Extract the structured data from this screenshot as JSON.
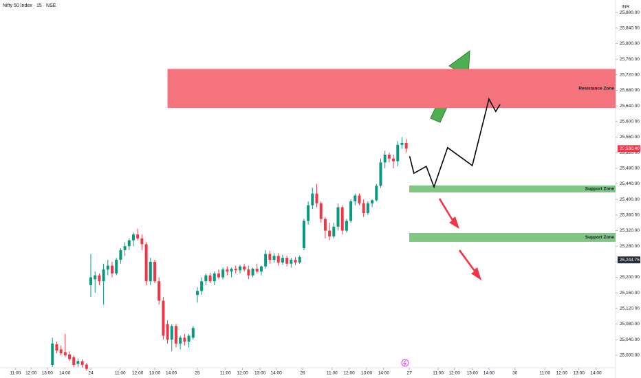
{
  "chart_data": {
    "type": "candlestick",
    "title": "Nifty 50 Index · 15 · NSE",
    "currency": "INR",
    "up_color": "#089981",
    "down_color": "#f23645",
    "x": [
      -9,
      -8,
      -7,
      -6,
      -5,
      -4,
      -3,
      -2,
      -1,
      0,
      1,
      2,
      3,
      4,
      5,
      6,
      7,
      8,
      9,
      10,
      11,
      12,
      13,
      14,
      15,
      16,
      17,
      18,
      19,
      20,
      21,
      22,
      23,
      24,
      25,
      26,
      27,
      28,
      29,
      30,
      31,
      32,
      33,
      34,
      35,
      36,
      37,
      38,
      39,
      40,
      41,
      42,
      43,
      44,
      45,
      46,
      47,
      48,
      49,
      50,
      51,
      52,
      53,
      54,
      55,
      56,
      57,
      58,
      59,
      60,
      61,
      62,
      63,
      64,
      65,
      66,
      67,
      68,
      69,
      70,
      71,
      72,
      73,
      74
    ],
    "open": [
      24975,
      25028,
      25015,
      25008,
      25002,
      24995,
      24978,
      24985,
      24976,
      25180,
      25195,
      25205,
      25190,
      25220,
      25230,
      25210,
      25245,
      25270,
      25280,
      25295,
      25310,
      25300,
      25285,
      25190,
      25240,
      25190,
      25140,
      25080,
      25040,
      25075,
      25030,
      25045,
      25035,
      25045,
      25155,
      25165,
      25190,
      25205,
      25190,
      25210,
      25200,
      25220,
      25215,
      25222,
      25218,
      25228,
      25220,
      25205,
      25222,
      25215,
      25228,
      25260,
      25245,
      25255,
      25238,
      25250,
      25235,
      25245,
      25238,
      25275,
      25345,
      25385,
      25415,
      25390,
      25350,
      25320,
      25305,
      25330,
      25380,
      25320,
      25345,
      25395,
      25410,
      25390,
      25365,
      25390,
      25398,
      25435,
      25495,
      25515,
      25505,
      25498,
      25540,
      25545
    ],
    "high": [
      25045,
      25035,
      25025,
      25055,
      25010,
      25000,
      24992,
      24990,
      24980,
      25260,
      25215,
      25210,
      25235,
      25245,
      25240,
      25250,
      25275,
      25290,
      25300,
      25315,
      25325,
      25310,
      25290,
      25250,
      25245,
      25200,
      25150,
      25090,
      25080,
      25080,
      25050,
      25055,
      25055,
      25075,
      25175,
      25200,
      25210,
      25212,
      25215,
      25220,
      25225,
      25228,
      25225,
      25230,
      25232,
      25235,
      25230,
      25225,
      25235,
      25230,
      25270,
      25268,
      25262,
      25262,
      25258,
      25256,
      25250,
      25252,
      25256,
      25350,
      25395,
      25430,
      25440,
      25395,
      25355,
      25340,
      25340,
      25390,
      25385,
      25350,
      25400,
      25415,
      25415,
      25400,
      25395,
      25400,
      25440,
      25505,
      25525,
      25520,
      25515,
      25550,
      25560,
      25555
    ],
    "low": [
      24970,
      25005,
      25000,
      24995,
      24985,
      24970,
      24970,
      24968,
      24960,
      25150,
      25160,
      25180,
      25130,
      25205,
      25200,
      25205,
      25235,
      25255,
      25270,
      25280,
      25295,
      25270,
      25180,
      25180,
      25185,
      25130,
      25040,
      25030,
      25010,
      25020,
      25015,
      25025,
      25020,
      25040,
      25135,
      25155,
      25180,
      25185,
      25180,
      25195,
      25195,
      25205,
      25200,
      25210,
      25210,
      25215,
      25195,
      25200,
      25210,
      25205,
      25222,
      25235,
      25238,
      25230,
      25232,
      25228,
      25225,
      25232,
      25235,
      25270,
      25335,
      25375,
      25380,
      25340,
      25300,
      25295,
      25300,
      25320,
      25310,
      25315,
      25340,
      25385,
      25385,
      25355,
      25360,
      25380,
      25395,
      25430,
      25480,
      25495,
      25480,
      25485,
      25530,
      25520
    ],
    "close": [
      25030,
      25012,
      25005,
      25000,
      24990,
      24975,
      24985,
      24975,
      24965,
      25200,
      25205,
      25190,
      25220,
      25230,
      25210,
      25245,
      25270,
      25280,
      25295,
      25310,
      25300,
      25285,
      25190,
      25240,
      25190,
      25140,
      25050,
      25040,
      25075,
      25030,
      25045,
      25035,
      25050,
      25070,
      25165,
      25190,
      25205,
      25190,
      25210,
      25200,
      25220,
      25215,
      25222,
      25218,
      25228,
      25220,
      25205,
      25222,
      25215,
      25228,
      25260,
      25245,
      25255,
      25238,
      25250,
      25235,
      25245,
      25238,
      25252,
      25345,
      25385,
      25415,
      25390,
      25350,
      25320,
      25305,
      25330,
      25380,
      25320,
      25345,
      25395,
      25410,
      25390,
      25365,
      25390,
      25398,
      25435,
      25495,
      25515,
      25505,
      25498,
      25540,
      25545,
      25530.4
    ],
    "xlim": [
      -21.3,
      123.1
    ],
    "xticks": [
      {
        "value": -17.7,
        "label": "11:00"
      },
      {
        "value": -14.0,
        "label": "12:00"
      },
      {
        "value": -10.2,
        "label": "13:00"
      },
      {
        "value": -6.1,
        "label": "14:00"
      },
      {
        "value": 0,
        "label": "24"
      },
      {
        "value": 6.9,
        "label": "11:00"
      },
      {
        "value": 11.0,
        "label": "12:00"
      },
      {
        "value": 15.0,
        "label": "13:00"
      },
      {
        "value": 18.9,
        "label": "14:00"
      },
      {
        "value": 25,
        "label": "25"
      },
      {
        "value": 31.6,
        "label": "11:00"
      },
      {
        "value": 35.6,
        "label": "12:00"
      },
      {
        "value": 39.7,
        "label": "13:00"
      },
      {
        "value": 43.5,
        "label": "14:00"
      },
      {
        "value": 49.7,
        "label": "26"
      },
      {
        "value": 56.6,
        "label": "11:00"
      },
      {
        "value": 60.6,
        "label": "12:00"
      },
      {
        "value": 64.7,
        "label": "13:00"
      },
      {
        "value": 68.7,
        "label": "14:00"
      },
      {
        "value": 74.7,
        "label": "27"
      },
      {
        "value": 81.5,
        "label": "11:00"
      },
      {
        "value": 85.3,
        "label": "12:00"
      },
      {
        "value": 89.5,
        "label": "13:00"
      },
      {
        "value": 93.4,
        "label": "14:00"
      },
      {
        "value": 99.5,
        "label": "30"
      },
      {
        "value": 106.5,
        "label": "11:00"
      },
      {
        "value": 110.5,
        "label": "12:00"
      },
      {
        "value": 114.5,
        "label": "13:00"
      },
      {
        "value": 118.5,
        "label": "14:00"
      }
    ],
    "ylim": [
      24968,
      25912
    ],
    "yticks": [
      {
        "value": 25000,
        "label": "25,000.00"
      },
      {
        "value": 25040,
        "label": "25,040.00"
      },
      {
        "value": 25080,
        "label": "25,080.00"
      },
      {
        "value": 25120,
        "label": "25,120.00"
      },
      {
        "value": 25160,
        "label": "25,160.00"
      },
      {
        "value": 25200,
        "label": "25,200.00"
      },
      {
        "value": 25240,
        "label": "25,240.00"
      },
      {
        "value": 25280,
        "label": "25,280.00"
      },
      {
        "value": 25320,
        "label": "25,320.00"
      },
      {
        "value": 25360,
        "label": "25,360.00"
      },
      {
        "value": 25400,
        "label": "25,400.00"
      },
      {
        "value": 25440,
        "label": "25,440.00"
      },
      {
        "value": 25480,
        "label": "25,480.00"
      },
      {
        "value": 25520,
        "label": "25,520.00"
      },
      {
        "value": 25560,
        "label": "25,560.00"
      },
      {
        "value": 25600,
        "label": "25,600.00"
      },
      {
        "value": 25640,
        "label": "25,640.00"
      },
      {
        "value": 25680,
        "label": "25,680.00"
      },
      {
        "value": 25720,
        "label": "25,720.00"
      },
      {
        "value": 25760,
        "label": "25,760.00"
      },
      {
        "value": 25800,
        "label": "25,800.00"
      },
      {
        "value": 25840,
        "label": "25,840.00"
      },
      {
        "value": 25880,
        "label": "25,880.00"
      }
    ],
    "zones": [
      {
        "label": "Resistance Zone",
        "low": 25635,
        "high": 25735,
        "x_start": 18,
        "color": "#f5737c"
      },
      {
        "label": "Support Zone",
        "low": 25418,
        "high": 25436,
        "x_start": 74.7,
        "color": "#81c784"
      },
      {
        "label": "Support Zone",
        "low": 25291,
        "high": 25314,
        "x_start": 74.7,
        "color": "#81c784"
      }
    ],
    "projection": {
      "x": [
        74.8,
        75.8,
        78.7,
        80.5,
        83.7,
        89.5,
        93.4,
        95.0,
        96.0
      ],
      "values": [
        25511,
        25467,
        25485,
        25432,
        25533,
        25487,
        25658,
        25626,
        25644
      ],
      "color": "#000000"
    },
    "price_labels": [
      {
        "value": 25530.4,
        "label": "25,530.40",
        "color": "#f23645"
      },
      {
        "value": 25244.75,
        "label": "25,244.75",
        "color": "#2a2e39"
      }
    ]
  }
}
